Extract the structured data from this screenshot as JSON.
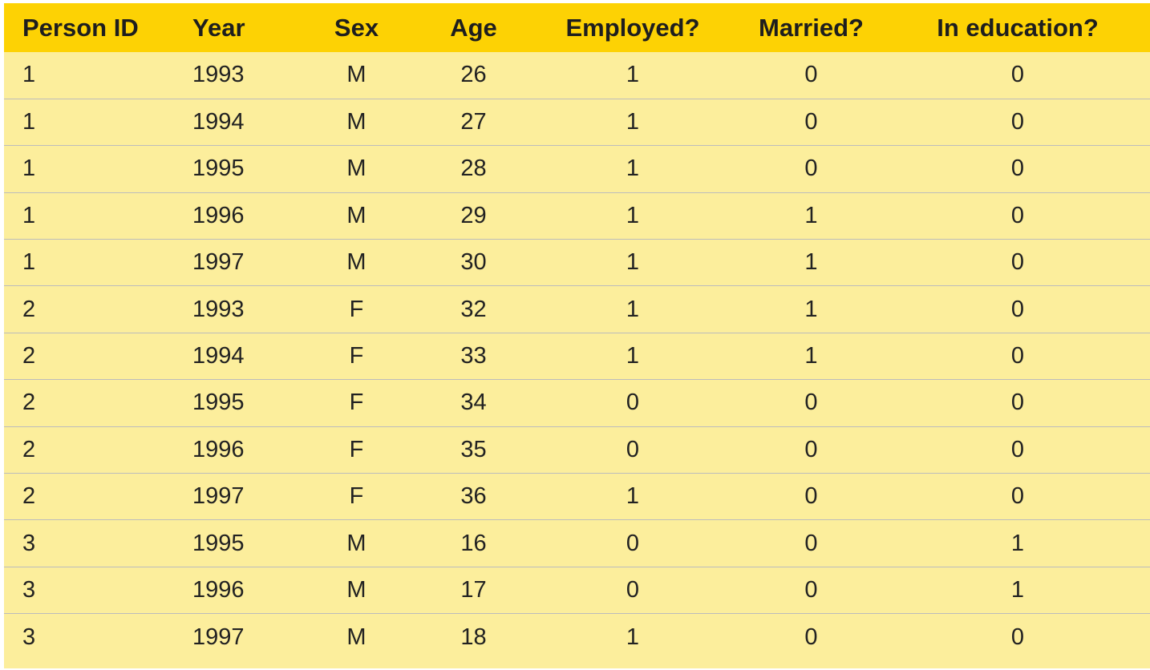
{
  "table": {
    "headers": [
      "Person ID",
      "Year",
      "Sex",
      "Age",
      "Employed?",
      "Married?",
      "In education?"
    ],
    "rows": [
      [
        "1",
        "1993",
        "M",
        "26",
        "1",
        "0",
        "0"
      ],
      [
        "1",
        "1994",
        "M",
        "27",
        "1",
        "0",
        "0"
      ],
      [
        "1",
        "1995",
        "M",
        "28",
        "1",
        "0",
        "0"
      ],
      [
        "1",
        "1996",
        "M",
        "29",
        "1",
        "1",
        "0"
      ],
      [
        "1",
        "1997",
        "M",
        "30",
        "1",
        "1",
        "0"
      ],
      [
        "2",
        "1993",
        "F",
        "32",
        "1",
        "1",
        "0"
      ],
      [
        "2",
        "1994",
        "F",
        "33",
        "1",
        "1",
        "0"
      ],
      [
        "2",
        "1995",
        "F",
        "34",
        "0",
        "0",
        "0"
      ],
      [
        "2",
        "1996",
        "F",
        "35",
        "0",
        "0",
        "0"
      ],
      [
        "2",
        "1997",
        "F",
        "36",
        "1",
        "0",
        "0"
      ],
      [
        "3",
        "1995",
        "M",
        "16",
        "0",
        "0",
        "1"
      ],
      [
        "3",
        "1996",
        "M",
        "17",
        "0",
        "0",
        "1"
      ],
      [
        "3",
        "1997",
        "M",
        "18",
        "1",
        "0",
        "0"
      ]
    ]
  },
  "colors": {
    "header_background": "#fdd204",
    "body_background": "#fcee9c",
    "row_divider": "#bcbcbc",
    "text": "#222222"
  }
}
